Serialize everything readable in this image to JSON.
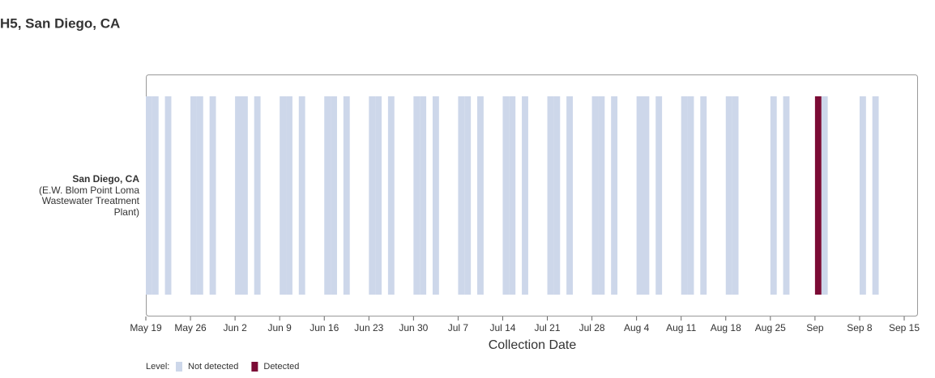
{
  "chart_data": {
    "type": "timeline",
    "title": "H5, San Diego, CA",
    "categories": [
      "San Diego, CA"
    ],
    "category_details": [
      "(E.W. Blom Point Loma Wastewater Treatment Plant)"
    ],
    "x_label": "Collection Date",
    "legend_title": "Level:",
    "xlim": [
      "May 19",
      "Sep 15"
    ],
    "xticks": [
      "May 19",
      "May 26",
      "Jun 2",
      "Jun 9",
      "Jun 16",
      "Jun 23",
      "Jun 30",
      "Jul 7",
      "Jul 14",
      "Jul 21",
      "Jul 28",
      "Aug 4",
      "Aug 11",
      "Aug 18",
      "Aug 25",
      {
        "value": "Sep 1",
        "label": "Sep"
      },
      "Sep 8",
      "Sep 15"
    ],
    "series": [
      {
        "name": "Not detected",
        "color": "#cdd7ea",
        "x": [
          "May 19",
          "May 20",
          "May 22",
          "May 26",
          "May 27",
          "May 29",
          "Jun 2",
          "Jun 3",
          "Jun 5",
          "Jun 9",
          "Jun 10",
          "Jun 12",
          "Jun 16",
          "Jun 17",
          "Jun 19",
          "Jun 23",
          "Jun 24",
          "Jun 26",
          "Jun 30",
          "Jul 1",
          "Jul 3",
          "Jul 7",
          "Jul 8",
          "Jul 10",
          "Jul 14",
          "Jul 15",
          "Jul 17",
          "Jul 21",
          "Jul 22",
          "Jul 24",
          "Jul 28",
          "Jul 29",
          "Jul 31",
          "Aug 4",
          "Aug 5",
          "Aug 7",
          "Aug 11",
          "Aug 12",
          "Aug 14",
          "Aug 18",
          "Aug 19",
          "Aug 25",
          "Aug 27",
          "Sep 2",
          "Sep 8",
          "Sep 10"
        ]
      },
      {
        "name": "Detected",
        "color": "#7b0b35",
        "x": [
          "Sep 1"
        ]
      }
    ]
  }
}
